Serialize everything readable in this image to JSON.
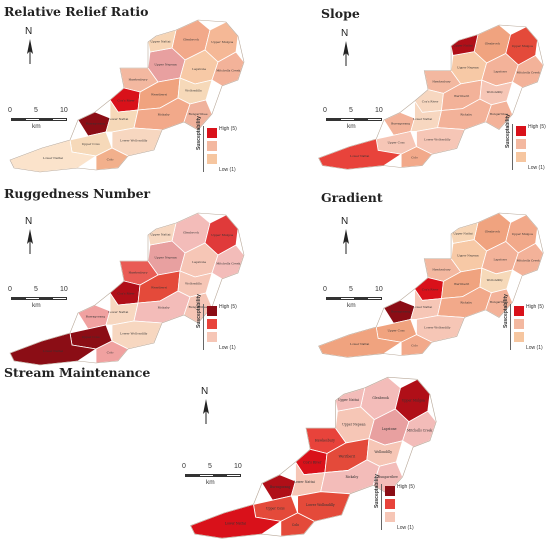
{
  "figure": {
    "panels": [
      {
        "id": "relief",
        "title": "Relative Relief Ratio",
        "colors": [
          "#f2a98a",
          "#f5b896",
          "#e8a0a0",
          "#f7c9a6",
          "#f3b299",
          "#f7d5b5",
          "#f3b8a0",
          "#d9111a",
          "#f0a37f",
          "#f6d9b9",
          "#8b0d15",
          "#f6d9b9",
          "#f2a98a",
          "#f0b29c",
          "#f7d7c0",
          "#f6d9b9",
          "#fbe3cb",
          "#f2b08c"
        ]
      },
      {
        "id": "slope",
        "title": "Slope",
        "colors": [
          "#f0a37f",
          "#e44a3a",
          "#f7c9a6",
          "#f3b299",
          "#f3b299",
          "#b00f18",
          "#f3b8a0",
          "#f7d7c0",
          "#f3b299",
          "#f6c6b6",
          "#f3b299",
          "#f7d7c0",
          "#f3b299",
          "#f3b299",
          "#f6c6b6",
          "#f6c6b6",
          "#e8433b",
          "#f2a98a"
        ]
      },
      {
        "id": "ruggedness",
        "title": "Ruggedness Number",
        "colors": [
          "#f3bcb9",
          "#e03a3a",
          "#e8a0a0",
          "#f6c6b6",
          "#f3bcb9",
          "#f7d7c0",
          "#e95c55",
          "#b00f18",
          "#e44a3a",
          "#f6c6b6",
          "#f0a1a0",
          "#f7d7c0",
          "#f3bcb9",
          "#f6c6b6",
          "#f7d7c0",
          "#8b0d15",
          "#8b0d15",
          "#f0a1a0"
        ]
      },
      {
        "id": "gradient",
        "title": "Gradient",
        "colors": [
          "#f0a37f",
          "#f2a98a",
          "#f7c9a6",
          "#f3b299",
          "#f3b299",
          "#f7d5b5",
          "#f3b8a0",
          "#d9111a",
          "#f0a37f",
          "#f6d9b9",
          "#8b0d15",
          "#f6c6b6",
          "#f2a98a",
          "#f3b299",
          "#f6c6b6",
          "#f0a37f",
          "#f0a37f",
          "#f2a98a"
        ]
      },
      {
        "id": "stream",
        "title": "Stream Maintenance",
        "colors": [
          "#f3bcb9",
          "#b00f18",
          "#f6c6b6",
          "#e8a0a0",
          "#f3bcb9",
          "#f3bcb9",
          "#e8433b",
          "#d9111a",
          "#e44a3a",
          "#f6c6b6",
          "#b00f18",
          "#f6c6b6",
          "#f3bcb9",
          "#f3bcb9",
          "#e44a3a",
          "#e44a3a",
          "#d9111a",
          "#e44a3a"
        ]
      }
    ],
    "north_label": "N",
    "scale": {
      "ticks": [
        "0",
        "5",
        "10"
      ],
      "unit": "km"
    },
    "legend": {
      "axis_label": "Susceptability",
      "high": "High (5)",
      "low": "Low (1)",
      "relief_colors": [
        "#d9111a",
        "#f3b8a0",
        "#f6c6a0"
      ],
      "slope_colors": [
        "#d9111a",
        "#f3b8a0",
        "#f6c6a0"
      ],
      "ruggedness_colors": [
        "#8b0d15",
        "#e8433b",
        "#f6c6b6"
      ],
      "gradient_colors": [
        "#d9111a",
        "#f3b8a0",
        "#f6c6a0"
      ],
      "stream_colors": [
        "#8b0d15",
        "#e8433b",
        "#f6c6b6"
      ]
    },
    "subbasins": [
      "Glenbrook",
      "Upper Mulgoa",
      "Upper Nepean",
      "Lapstone",
      "Mitchells Creek",
      "Upper Nattai",
      "Hawkesbury",
      "Cox's River",
      "Werriberri",
      "Wollondilly",
      "Burragorang",
      "Lower Nattai",
      "Rickaby",
      "Bungarribee",
      "Lower Wollondilly",
      "Upper Coxs",
      "Lower Nattai",
      "Colo"
    ]
  }
}
